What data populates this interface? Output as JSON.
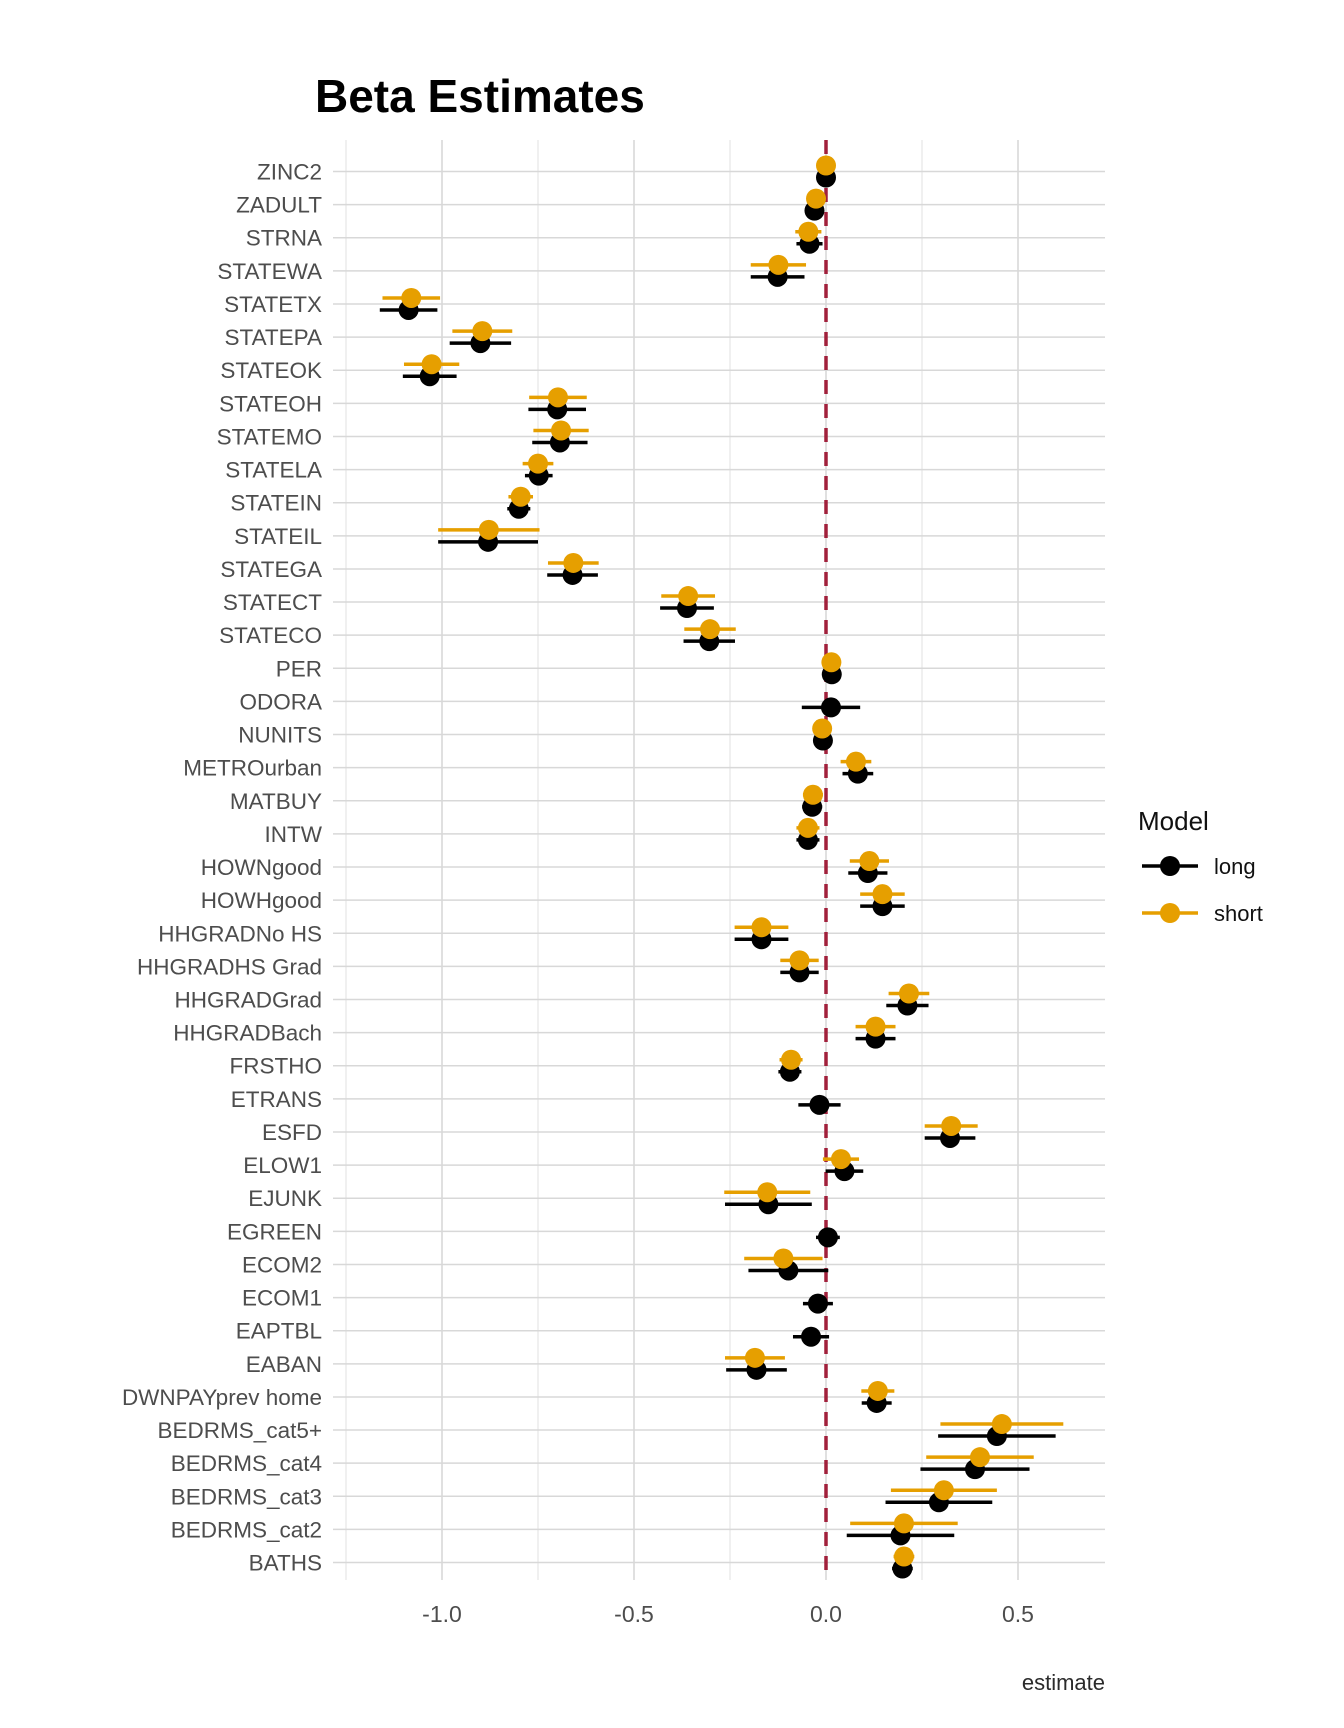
{
  "colors": {
    "long": "#000000",
    "short": "#E69F00",
    "refline": "#A1203B",
    "grid_major": "#D8D8D8",
    "grid_minor": "#E7E7E7",
    "axis_text": "#4d4d4d"
  },
  "legend": {
    "title": "Model",
    "items": [
      {
        "label": "long"
      },
      {
        "label": "short"
      }
    ]
  },
  "chart_data": {
    "type": "scatter",
    "subtype": "dot-whisker-forest-plot",
    "title": "Beta Estimates",
    "xlabel": "estimate",
    "ylabel": "",
    "legend_title": "Model",
    "legend_position": "right-middle",
    "grid": "on",
    "refline_x": 0,
    "refline_style": "dashed",
    "xlim": [
      -1.285,
      0.73
    ],
    "x_ticks": [
      -1.0,
      -0.5,
      0.0,
      0.5
    ],
    "x_tick_labels": [
      "-1.0",
      "-0.5",
      "0.0",
      "0.5"
    ],
    "x_minor_ticks": [
      -1.25,
      -0.75,
      -0.25,
      0.25
    ],
    "categories": [
      "ZINC2",
      "ZADULT",
      "STRNA",
      "STATEWA",
      "STATETX",
      "STATEPA",
      "STATEOK",
      "STATEOH",
      "STATEMO",
      "STATELA",
      "STATEIN",
      "STATEIL",
      "STATEGA",
      "STATECT",
      "STATECO",
      "PER",
      "ODORA",
      "NUNITS",
      "METROurban",
      "MATBUY",
      "INTW",
      "HOWNgood",
      "HOWHgood",
      "HHGRADNo HS",
      "HHGRADHS Grad",
      "HHGRADGrad",
      "HHGRADBach",
      "FRSTHO",
      "ETRANS",
      "ESFD",
      "ELOW1",
      "EJUNK",
      "EGREEN",
      "ECOM2",
      "ECOM1",
      "EAPTBL",
      "EABAN",
      "DWNPAYprev home",
      "BEDRMS_cat5+",
      "BEDRMS_cat4",
      "BEDRMS_cat3",
      "BEDRMS_cat2",
      "BATHS"
    ],
    "series": [
      {
        "name": "long",
        "estimates": [
          0.0,
          -0.03,
          -0.043,
          -0.126,
          -1.087,
          -0.9,
          -1.032,
          -0.7,
          -0.693,
          -0.748,
          -0.8,
          -0.88,
          -0.66,
          -0.362,
          -0.304,
          0.015,
          0.013,
          -0.008,
          0.083,
          -0.036,
          -0.047,
          0.109,
          0.147,
          -0.168,
          -0.069,
          0.212,
          0.129,
          -0.094,
          -0.017,
          0.323,
          0.048,
          -0.15,
          0.005,
          -0.098,
          -0.021,
          -0.039,
          -0.181,
          0.132,
          0.445,
          0.388,
          0.294,
          0.194,
          0.199
        ],
        "errors": [
          0.012,
          0.015,
          0.034,
          0.07,
          0.075,
          0.08,
          0.07,
          0.075,
          0.072,
          0.036,
          0.03,
          0.13,
          0.066,
          0.07,
          0.067,
          0.02,
          0.076,
          0.018,
          0.04,
          0.026,
          0.03,
          0.051,
          0.058,
          0.07,
          0.05,
          0.055,
          0.052,
          0.03,
          0.055,
          0.066,
          0.049,
          0.113,
          0.031,
          0.104,
          0.039,
          0.047,
          0.079,
          0.039,
          0.153,
          0.142,
          0.139,
          0.14,
          0.027
        ]
      },
      {
        "name": "short",
        "estimates": [
          0.0,
          -0.026,
          -0.046,
          -0.124,
          -1.08,
          -0.895,
          -1.027,
          -0.698,
          -0.69,
          -0.75,
          -0.795,
          -0.878,
          -0.658,
          -0.359,
          -0.302,
          0.014,
          null,
          -0.01,
          0.078,
          -0.034,
          -0.047,
          0.113,
          0.147,
          -0.168,
          -0.069,
          0.216,
          0.129,
          -0.091,
          null,
          0.326,
          0.039,
          -0.153,
          null,
          -0.111,
          null,
          null,
          -0.185,
          0.135,
          0.458,
          0.401,
          0.307,
          0.203,
          0.203
        ],
        "errors": [
          0.012,
          0.015,
          0.034,
          0.072,
          0.075,
          0.078,
          0.072,
          0.075,
          0.072,
          0.04,
          0.032,
          0.132,
          0.066,
          0.07,
          0.067,
          0.02,
          null,
          0.018,
          0.04,
          0.026,
          0.03,
          0.051,
          0.058,
          0.07,
          0.05,
          0.053,
          0.052,
          0.03,
          null,
          0.069,
          0.047,
          0.112,
          null,
          0.102,
          null,
          null,
          0.078,
          0.043,
          0.16,
          0.14,
          0.138,
          0.14,
          0.027
        ]
      }
    ]
  }
}
